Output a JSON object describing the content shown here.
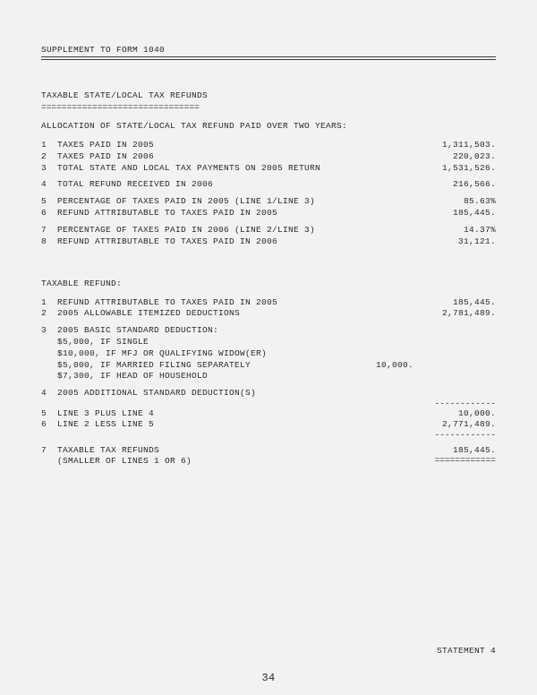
{
  "header": {
    "title": "SUPPLEMENT TO FORM 1040"
  },
  "section1": {
    "heading": "TAXABLE STATE/LOCAL TAX REFUNDS",
    "underline": "===============================",
    "intro": "ALLOCATION OF STATE/LOCAL TAX REFUND PAID OVER TWO YEARS:",
    "rows": {
      "r1": {
        "n": "1",
        "label": "TAXES PAID IN 2005",
        "val": "1,311,503."
      },
      "r2": {
        "n": "2",
        "label": "TAXES PAID IN 2006",
        "val": "220,023."
      },
      "r3": {
        "n": "3",
        "label": "TOTAL STATE AND LOCAL TAX PAYMENTS ON 2005 RETURN",
        "val": "1,531,526."
      },
      "r4": {
        "n": "4",
        "label": "TOTAL REFUND RECEIVED IN 2006",
        "val": "216,566."
      },
      "r5": {
        "n": "5",
        "label": "PERCENTAGE OF TAXES PAID IN 2005 (LINE 1/LINE 3)",
        "val": "85.63%"
      },
      "r6": {
        "n": "6",
        "label": "REFUND ATTRIBUTABLE TO TAXES PAID IN 2005",
        "val": "185,445."
      },
      "r7": {
        "n": "7",
        "label": "PERCENTAGE OF TAXES PAID IN 2006 (LINE 2/LINE 3)",
        "val": "14.37%"
      },
      "r8": {
        "n": "8",
        "label": "REFUND ATTRIBUTABLE TO TAXES PAID IN 2006",
        "val": "31,121."
      }
    }
  },
  "section2": {
    "heading": "TAXABLE REFUND:",
    "rows": {
      "r1": {
        "n": "1",
        "label": "REFUND ATTRIBUTABLE TO TAXES PAID IN 2005",
        "val": "185,445."
      },
      "r2": {
        "n": "2",
        "label": "2005 ALLOWABLE ITEMIZED DEDUCTIONS",
        "val": "2,781,489."
      },
      "r3": {
        "n": "3",
        "label": "2005 BASIC STANDARD DEDUCTION:"
      },
      "r3a": "$5,000, IF SINGLE",
      "r3b": "$10,000, IF MFJ OR QUALIFYING WIDOW(ER)",
      "r3c": "$5,000, IF MARRIED FILING SEPARATELY",
      "r3c_mid": "10,000.",
      "r3d": "$7,300, IF HEAD OF HOUSEHOLD",
      "r4": {
        "n": "4",
        "label": "2005 ADDITIONAL STANDARD DEDUCTION(S)"
      },
      "dash1": "------------",
      "r5": {
        "n": "5",
        "label": "LINE 3 PLUS LINE 4",
        "val": "10,000."
      },
      "r6": {
        "n": "6",
        "label": "LINE 2 LESS LINE 5",
        "val": "2,771,489."
      },
      "dash2": "------------",
      "r7": {
        "n": "7",
        "label": "TAXABLE TAX REFUNDS",
        "val": "185,445."
      },
      "r7b": "(SMALLER OF LINES 1 OR 6)",
      "dbl": "============"
    }
  },
  "footer": {
    "statement": "STATEMENT   4",
    "pagenum": "34"
  }
}
